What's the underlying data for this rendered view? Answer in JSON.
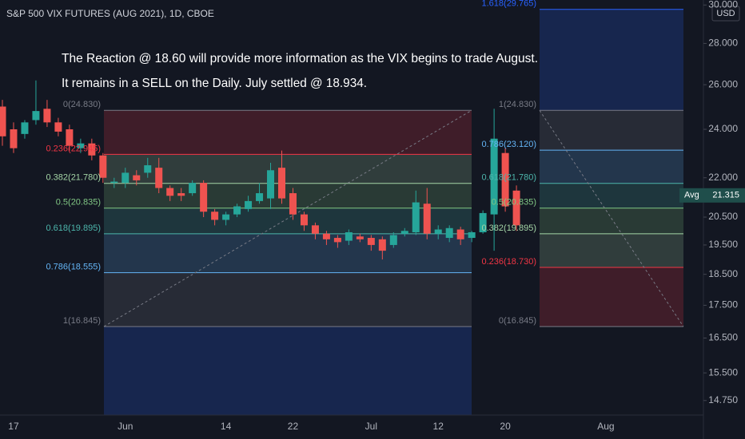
{
  "chart_data": {
    "type": "candlestick",
    "title": "S&P 500 VIX FUTURES (AUG 2021), 1D, CBOE",
    "currency": "USD",
    "annotations": [
      "The Reaction @ 18.60 will provide more information as the VIX begins to trade August.",
      "It remains in a SELL on the Daily. July settled @ 18.934."
    ],
    "categories": [
      null,
      "17",
      null,
      null,
      null,
      null,
      null,
      null,
      null,
      null,
      null,
      "Jun",
      null,
      null,
      null,
      null,
      null,
      null,
      null,
      null,
      "14",
      null,
      null,
      null,
      null,
      null,
      "22",
      null,
      null,
      null,
      null,
      null,
      null,
      "Jul",
      null,
      null,
      null,
      null,
      null,
      "12",
      null,
      null,
      null,
      null,
      null,
      "20",
      null,
      null,
      null,
      null,
      null,
      null,
      null,
      null,
      "Aug",
      null,
      null,
      null,
      null,
      null,
      null,
      null,
      null
    ],
    "open": [
      25.0,
      24.0,
      23.8,
      24.4,
      24.9,
      24.3,
      24.0,
      23.2,
      23.4,
      22.9,
      21.8,
      21.8,
      22.1,
      22.2,
      22.4,
      21.6,
      21.4,
      21.4,
      21.8,
      20.7,
      20.4,
      20.6,
      20.8,
      21.1,
      21.2,
      22.4,
      21.4,
      20.6,
      20.2,
      19.9,
      19.75,
      19.65,
      19.8,
      19.75,
      19.7,
      19.5,
      19.9,
      19.95,
      21.0,
      19.9,
      19.75,
      20.05,
      19.75,
      19.95,
      20.6,
      23.0,
      21.5,
      null,
      null,
      null,
      null,
      null,
      null,
      null,
      null,
      null,
      null,
      null,
      null,
      null,
      null,
      null,
      null
    ],
    "high": [
      25.3,
      24.3,
      24.4,
      26.2,
      25.3,
      24.5,
      24.2,
      23.6,
      23.6,
      23.0,
      22.0,
      22.4,
      22.3,
      22.8,
      22.8,
      21.7,
      21.6,
      21.9,
      21.9,
      20.8,
      20.7,
      21.0,
      21.3,
      21.8,
      22.6,
      23.1,
      21.6,
      20.7,
      20.3,
      20.0,
      19.85,
      20.05,
      19.9,
      19.85,
      19.8,
      19.95,
      20.1,
      21.5,
      21.6,
      20.2,
      20.2,
      20.15,
      20.0,
      20.75,
      24.9,
      23.2,
      21.7,
      null,
      null,
      null,
      null,
      null,
      null,
      null,
      null,
      null,
      null,
      null,
      null,
      null,
      null,
      null,
      null
    ],
    "low": [
      23.3,
      23.0,
      23.6,
      24.2,
      24.1,
      23.7,
      23.1,
      23.0,
      22.7,
      21.8,
      21.6,
      21.6,
      21.7,
      22.0,
      21.4,
      21.1,
      21.1,
      21.3,
      20.5,
      20.2,
      20.2,
      20.5,
      20.7,
      21.0,
      20.8,
      21.0,
      20.4,
      20.0,
      19.7,
      19.5,
      19.4,
      19.5,
      19.6,
      19.3,
      19.0,
      19.4,
      19.8,
      19.85,
      19.7,
      19.7,
      19.6,
      19.5,
      19.6,
      19.9,
      19.3,
      20.7,
      20.0,
      null,
      null,
      null,
      null,
      null,
      null,
      null,
      null,
      null,
      null,
      null,
      null,
      null,
      null,
      null,
      null
    ],
    "close": [
      23.7,
      23.2,
      24.3,
      24.8,
      24.3,
      23.9,
      23.3,
      23.4,
      22.9,
      22.0,
      21.85,
      22.2,
      21.9,
      22.5,
      21.6,
      21.3,
      21.3,
      21.8,
      20.7,
      20.4,
      20.6,
      20.9,
      21.1,
      21.4,
      22.3,
      21.2,
      20.6,
      20.2,
      19.9,
      19.7,
      19.6,
      19.95,
      19.7,
      19.5,
      19.3,
      19.85,
      20.0,
      21.05,
      19.9,
      20.05,
      20.1,
      19.7,
      19.95,
      20.65,
      23.6,
      20.9,
      20.2,
      null,
      null,
      null,
      null,
      null,
      null,
      null,
      null,
      null,
      null,
      null,
      null,
      null,
      null,
      null,
      null
    ],
    "up_color": "#26a69a",
    "down_color": "#ef5350",
    "log_scale": true,
    "ylim": [
      14.37,
      30.27
    ],
    "yticks": [
      {
        "value": 30,
        "label": "30.000"
      },
      {
        "value": 28,
        "label": "28.000"
      },
      {
        "value": 26,
        "label": "26.000"
      },
      {
        "value": 24,
        "label": "24.000"
      },
      {
        "value": 22,
        "label": "22.000"
      },
      {
        "value": 20.5,
        "label": "20.500"
      },
      {
        "value": 19.5,
        "label": "19.500"
      },
      {
        "value": 18.5,
        "label": "18.500"
      },
      {
        "value": 17.5,
        "label": "17.500"
      },
      {
        "value": 16.5,
        "label": "16.500"
      },
      {
        "value": 15.5,
        "label": "15.500"
      },
      {
        "value": 14.75,
        "label": "14.750"
      }
    ],
    "avg": {
      "label": "Avg",
      "value": 21.315
    },
    "fibs": [
      {
        "levels": [
          {
            "value": 24.83,
            "label": "0(24.830)",
            "color": "#787b86"
          },
          {
            "value": 22.945,
            "label": "0.236(22.945)",
            "color": "#f23645"
          },
          {
            "value": 21.78,
            "label": "0.382(21.780)",
            "color": "#a5d6a7"
          },
          {
            "value": 20.835,
            "label": "0.5(20.835)",
            "color": "#81c784"
          },
          {
            "value": 19.895,
            "label": "0.618(19.895)",
            "color": "#4db6ac"
          },
          {
            "value": 18.555,
            "label": "0.786(18.555)",
            "color": "#64b5f6"
          },
          {
            "value": 16.845,
            "label": "1(16.845)",
            "color": "#787b86"
          }
        ]
      },
      {
        "levels": [
          {
            "value": 16.845,
            "label": "0(16.845)",
            "color": "#787b86"
          },
          {
            "value": 18.73,
            "label": "0.236(18.730)",
            "color": "#f23645"
          },
          {
            "value": 19.895,
            "label": "0.382(19.895)",
            "color": "#a5d6a7"
          },
          {
            "value": 20.835,
            "label": "0.5(20.835)",
            "color": "#81c784"
          },
          {
            "value": 21.78,
            "label": "0.618(21.780)",
            "color": "#4db6ac"
          },
          {
            "value": 23.12,
            "label": "0.786(23.120)",
            "color": "#64b5f6"
          },
          {
            "value": 24.83,
            "label": "1(24.830)",
            "color": "#787b86"
          },
          {
            "value": 29.765,
            "label": "1.618(29.765)",
            "color": "#2962ff"
          }
        ]
      }
    ]
  }
}
